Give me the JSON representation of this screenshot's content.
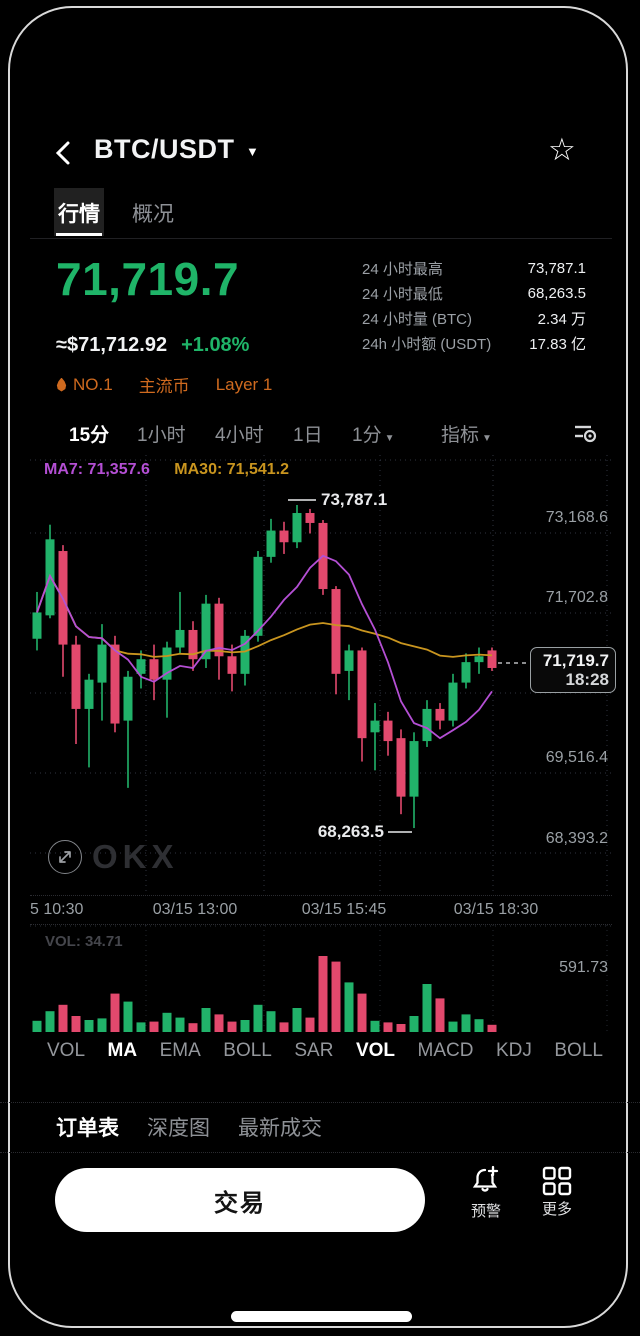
{
  "colors": {
    "up_green": "#21b26a",
    "down_red": "#e2496d",
    "price_green": "#1fb468",
    "badge_orange": "#cf6a1f",
    "ma7_purple": "#b44fd4",
    "ma30_amber": "#c9951f",
    "gridline": "#3c4352",
    "annotation_white": "#e9eaec"
  },
  "header": {
    "back_icon": "chevron-left",
    "title": "BTC/USDT",
    "dropdown_icon": "▼",
    "star_icon": "☆"
  },
  "tabs": [
    {
      "label": "行情",
      "active": true
    },
    {
      "label": "概况",
      "active": false
    }
  ],
  "price": {
    "last": "71,719.7",
    "fiat": "≈$71,712.92",
    "change": "+1.08%"
  },
  "badges": {
    "rank": "NO.1",
    "tag1": "主流币",
    "tag2": "Layer 1"
  },
  "stats": [
    {
      "label": "24 小时最高",
      "value": "73,787.1"
    },
    {
      "label": "24 小时最低",
      "value": "68,263.5"
    },
    {
      "label": "24 小时量 (BTC)",
      "value": "2.34 万"
    },
    {
      "label": "24h 小时额 (USDT)",
      "value": "17.83 亿"
    }
  ],
  "timeframes": {
    "items": [
      {
        "label": "15分",
        "active": true,
        "dropdown": false
      },
      {
        "label": "1小时",
        "active": false,
        "dropdown": false
      },
      {
        "label": "4小时",
        "active": false,
        "dropdown": false
      },
      {
        "label": "1日",
        "active": false,
        "dropdown": false
      },
      {
        "label": "1分",
        "active": false,
        "dropdown": true
      },
      {
        "label": "指标",
        "active": false,
        "dropdown": true
      }
    ]
  },
  "chart": {
    "ma7_label": "MA7: 71,357.6",
    "ma30_label": "MA30: 71,541.2",
    "high_annotation": "73,787.1",
    "low_annotation": "68,263.5",
    "price_tag": {
      "price": "71,719.7",
      "time": "18:28"
    },
    "y_axis": [
      "73,168.6",
      "71,702.8",
      "69,516.4",
      "68,393.2"
    ],
    "x_axis": [
      "5 10:30",
      "03/15 13:00",
      "03/15 15:45",
      "03/15 18:30"
    ],
    "watermark": "OKX"
  },
  "volume": {
    "label": "VOL: 34.71",
    "max_label": "591.73"
  },
  "chart_data": {
    "type": "candlestick",
    "interval": "15m",
    "pair": "BTC/USDT",
    "ohlc": [
      [
        71500,
        72300,
        71300,
        71950
      ],
      [
        71900,
        73450,
        71850,
        73200
      ],
      [
        73000,
        73100,
        70850,
        71400
      ],
      [
        71400,
        71550,
        69700,
        70300
      ],
      [
        70300,
        70900,
        69300,
        70800
      ],
      [
        70750,
        71750,
        70100,
        71400
      ],
      [
        71400,
        71550,
        69900,
        70050
      ],
      [
        70100,
        70950,
        68950,
        70850
      ],
      [
        70900,
        71300,
        70650,
        71150
      ],
      [
        71150,
        71400,
        70450,
        70800
      ],
      [
        70800,
        71450,
        70150,
        71350
      ],
      [
        71350,
        72300,
        71250,
        71650
      ],
      [
        71650,
        71800,
        70950,
        71150
      ],
      [
        71150,
        72250,
        71000,
        72100
      ],
      [
        72100,
        72200,
        70800,
        71200
      ],
      [
        71200,
        71400,
        70600,
        70900
      ],
      [
        70900,
        71650,
        70700,
        71550
      ],
      [
        71550,
        73000,
        71450,
        72900
      ],
      [
        72900,
        73550,
        72800,
        73350
      ],
      [
        73350,
        73500,
        72950,
        73150
      ],
      [
        73150,
        73787,
        73050,
        73650
      ],
      [
        73650,
        73720,
        73300,
        73480
      ],
      [
        73480,
        73530,
        72250,
        72350
      ],
      [
        72350,
        72400,
        70550,
        70900
      ],
      [
        70950,
        71400,
        70450,
        71300
      ],
      [
        71300,
        71350,
        69400,
        69800
      ],
      [
        69900,
        70400,
        69250,
        70100
      ],
      [
        70100,
        70250,
        69500,
        69750
      ],
      [
        69800,
        69950,
        68500,
        68800
      ],
      [
        68800,
        69900,
        68263,
        69750
      ],
      [
        69750,
        70450,
        69650,
        70300
      ],
      [
        70300,
        70400,
        69950,
        70100
      ],
      [
        70100,
        70900,
        70000,
        70750
      ],
      [
        70750,
        71250,
        70650,
        71100
      ],
      [
        71100,
        71350,
        70900,
        71200
      ],
      [
        71300,
        71350,
        70950,
        71000
      ]
    ],
    "volumes": [
      14,
      26,
      34,
      20,
      15,
      17,
      48,
      38,
      12,
      13,
      24,
      18,
      11,
      30,
      22,
      13,
      15,
      34,
      26,
      12,
      30,
      18,
      95,
      88,
      62,
      48,
      14,
      12,
      10,
      20,
      60,
      42,
      13,
      22,
      16,
      9
    ],
    "ma_periods": [
      7,
      30
    ],
    "high": 73787.1,
    "low": 68263.5,
    "ylabels": [
      73168.6,
      71702.8,
      69516.4,
      68393.2
    ],
    "volume_scale_max": 591.73
  },
  "indicators": {
    "items": [
      {
        "label": "VOL",
        "active": false
      },
      {
        "label": "MA",
        "active": true
      },
      {
        "label": "EMA",
        "active": false
      },
      {
        "label": "BOLL",
        "active": false
      },
      {
        "label": "SAR",
        "active": false
      },
      {
        "label": "VOL",
        "active": true
      },
      {
        "label": "MACD",
        "active": false
      },
      {
        "label": "KDJ",
        "active": false
      },
      {
        "label": "BOLL",
        "active": false
      }
    ]
  },
  "bottom_tabs": [
    {
      "label": "订单表",
      "active": true
    },
    {
      "label": "深度图",
      "active": false
    },
    {
      "label": "最新成交",
      "active": false
    }
  ],
  "actions": {
    "trade_label": "交易",
    "alert_label": "预警",
    "more_label": "更多"
  }
}
